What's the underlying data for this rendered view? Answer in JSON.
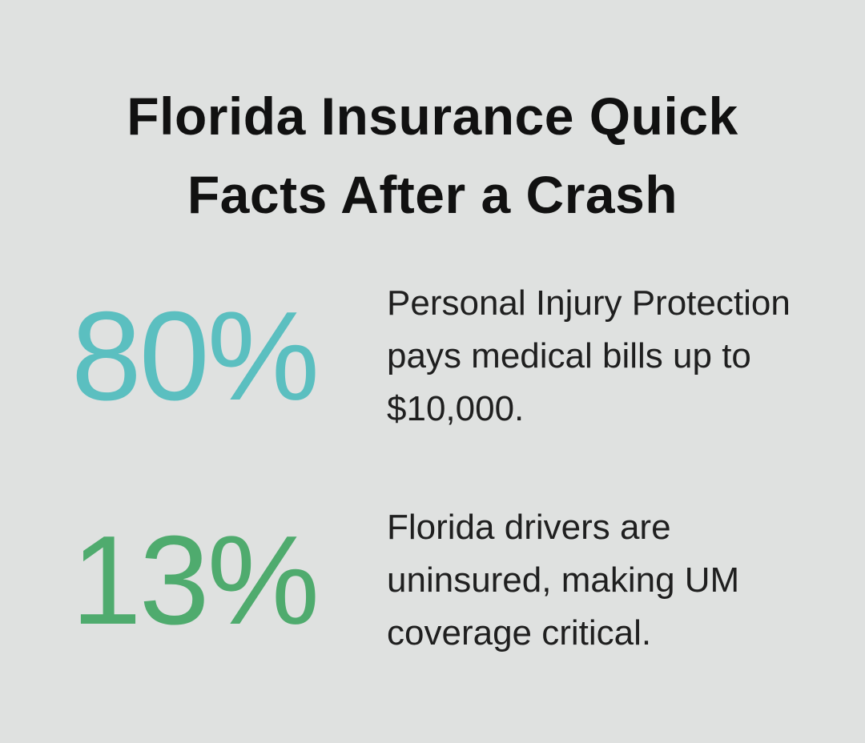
{
  "header": {
    "title": "Florida Insurance Quick Facts After a Crash"
  },
  "facts": [
    {
      "stat": "80%",
      "text": "Personal Injury Protection pays medical bills up to $10,000."
    },
    {
      "stat": "13%",
      "text": "Florida drivers are uninsured, making UM coverage critical."
    }
  ]
}
